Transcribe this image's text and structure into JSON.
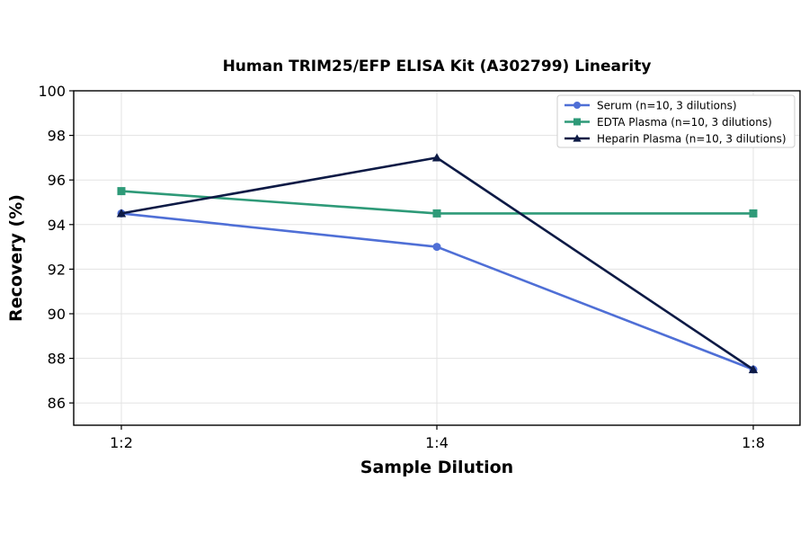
{
  "chart_data": {
    "type": "line",
    "title": "Human TRIM25/EFP ELISA Kit (A302799) Linearity",
    "xlabel": "Sample Dilution",
    "ylabel": "Recovery (%)",
    "categories": [
      "1:2",
      "1:4",
      "1:8"
    ],
    "ylim": [
      85,
      100
    ],
    "yticks": [
      86,
      88,
      90,
      92,
      94,
      96,
      98,
      100
    ],
    "grid": true,
    "legend_position": "top-right",
    "series": [
      {
        "name": "Serum (n=10, 3 dilutions)",
        "values": [
          94.5,
          93.0,
          87.5
        ],
        "color": "#4f6fd6",
        "marker": "circle"
      },
      {
        "name": "EDTA Plasma (n=10, 3 dilutions)",
        "values": [
          95.5,
          94.5,
          94.5
        ],
        "color": "#2e9a78",
        "marker": "square"
      },
      {
        "name": "Heparin Plasma (n=10, 3 dilutions)",
        "values": [
          94.5,
          97.0,
          87.5
        ],
        "color": "#0d1a45",
        "marker": "triangle"
      }
    ]
  }
}
